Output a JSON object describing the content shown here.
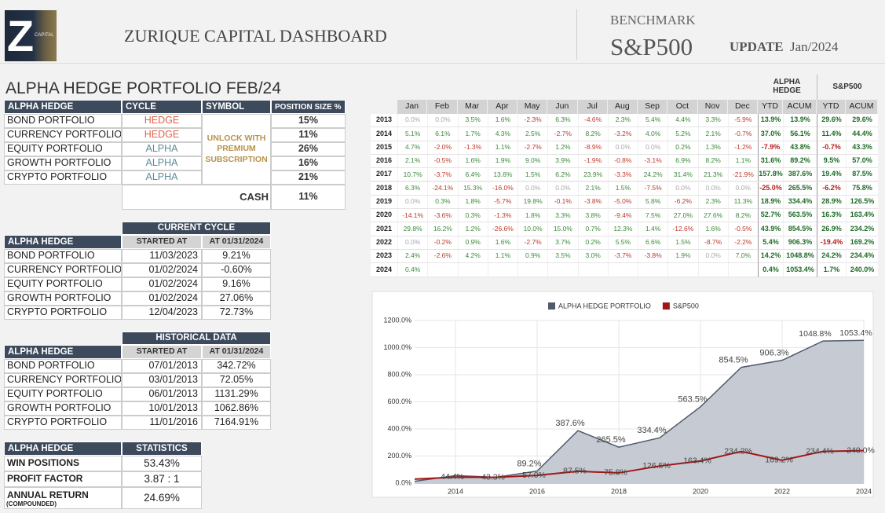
{
  "header": {
    "logo": "Z",
    "logo_sub": "CAPITAL",
    "title": "ZURIQUE CAPITAL DASHBOARD",
    "benchmark_label": "BENCHMARK",
    "benchmark": "S&P500",
    "update_label": "UPDATE",
    "update_value": "Jan/2024"
  },
  "portfolio": {
    "title": "ALPHA HEDGE PORTFOLIO FEB/24",
    "columns": [
      "ALPHA HEDGE",
      "CYCLE",
      "SYMBOL",
      "POSITION SIZE %"
    ],
    "rows": [
      [
        "BOND PORTFOLIO",
        "HEDGE",
        "15%"
      ],
      [
        "CURRENCY PORTFOLIO",
        "HEDGE",
        "11%"
      ],
      [
        "EQUITY PORTFOLIO",
        "ALPHA",
        "26%"
      ],
      [
        "GROWTH PORTFOLIO",
        "ALPHA",
        "16%"
      ],
      [
        "CRYPTO PORTFOLIO",
        "ALPHA",
        "21%"
      ]
    ],
    "symbol_note": "UNLOCK WITH PREMIUM SUBSCRIPTION",
    "cash_label": "CASH",
    "cash_value": "11%"
  },
  "current_cycle": {
    "title": "CURRENT CYCLE",
    "columns": [
      "ALPHA HEDGE",
      "STARTED AT",
      "AT 01/31/2024"
    ],
    "rows": [
      [
        "BOND PORTFOLIO",
        "11/03/2023",
        "9.21%"
      ],
      [
        "CURRENCY PORTFOLIO",
        "01/02/2024",
        "-0.60%"
      ],
      [
        "EQUITY PORTFOLIO",
        "01/02/2024",
        "9.16%"
      ],
      [
        "GROWTH PORTFOLIO",
        "01/02/2024",
        "27.06%"
      ],
      [
        "CRYPTO PORTFOLIO",
        "12/04/2023",
        "72.73%"
      ]
    ]
  },
  "historical": {
    "title": "HISTORICAL DATA",
    "columns": [
      "ALPHA HEDGE",
      "STARTED AT",
      "AT 01/31/2024"
    ],
    "rows": [
      [
        "BOND PORTFOLIO",
        "07/01/2013",
        "342.72%"
      ],
      [
        "CURRENCY PORTFOLIO",
        "03/01/2013",
        "72.05%"
      ],
      [
        "EQUITY PORTFOLIO",
        "06/01/2013",
        "1131.29%"
      ],
      [
        "GROWTH PORTFOLIO",
        "10/01/2013",
        "1062.86%"
      ],
      [
        "CRYPTO PORTFOLIO",
        "11/01/2016",
        "7164.91%"
      ]
    ]
  },
  "statistics": {
    "columns": [
      "ALPHA HEDGE",
      "STATISTICS"
    ],
    "rows": [
      [
        "WIN POSITIONS",
        "53.43%"
      ],
      [
        "PROFIT FACTOR",
        "3.87 : 1"
      ],
      [
        "ANNUAL RETURN",
        "24.69%"
      ]
    ],
    "note": "(COMPOUNDED)"
  },
  "monthly": {
    "groups": [
      "ALPHA HEDGE",
      "S&P500"
    ],
    "columns": [
      "Jan",
      "Feb",
      "Mar",
      "Apr",
      "May",
      "Jun",
      "Jul",
      "Aug",
      "Sep",
      "Oct",
      "Nov",
      "Dec",
      "YTD",
      "ACUM",
      "YTD",
      "ACUM"
    ],
    "rows": [
      [
        2013,
        "0.0%",
        "0.0%",
        "3.5%",
        "1.6%",
        "-2.3%",
        "6.3%",
        "-4.6%",
        "2.3%",
        "5.4%",
        "4.4%",
        "3.3%",
        "-5.9%",
        "13.9%",
        "13.9%",
        "29.6%",
        "29.6%"
      ],
      [
        2014,
        "5.1%",
        "6.1%",
        "1.7%",
        "4.3%",
        "2.5%",
        "-2.7%",
        "8.2%",
        "-3.2%",
        "4.0%",
        "5.2%",
        "2.1%",
        "-0.7%",
        "37.0%",
        "56.1%",
        "11.4%",
        "44.4%"
      ],
      [
        2015,
        "4.7%",
        "-2.0%",
        "-1.3%",
        "1.1%",
        "-2.7%",
        "1.2%",
        "-8.9%",
        "0.0%",
        "0.0%",
        "0.2%",
        "1.3%",
        "-1.2%",
        "-7.9%",
        "43.8%",
        "-0.7%",
        "43.3%"
      ],
      [
        2016,
        "2.1%",
        "-0.5%",
        "1.6%",
        "1.9%",
        "9.0%",
        "3.9%",
        "-1.9%",
        "-0.8%",
        "-3.1%",
        "6.9%",
        "8.2%",
        "1.1%",
        "31.6%",
        "89.2%",
        "9.5%",
        "57.0%"
      ],
      [
        2017,
        "10.7%",
        "-3.7%",
        "6.4%",
        "13.6%",
        "1.5%",
        "6.2%",
        "23.9%",
        "-3.3%",
        "24.2%",
        "31.4%",
        "21.3%",
        "-21.9%",
        "157.8%",
        "387.6%",
        "19.4%",
        "87.5%"
      ],
      [
        2018,
        "6.3%",
        "-24.1%",
        "15.3%",
        "-16.0%",
        "0.0%",
        "0.0%",
        "2.1%",
        "1.5%",
        "-7.5%",
        "0.0%",
        "0.0%",
        "0.0%",
        "-25.0%",
        "265.5%",
        "-6.2%",
        "75.8%"
      ],
      [
        2019,
        "0.0%",
        "0.3%",
        "1.8%",
        "-5.7%",
        "19.8%",
        "-0.1%",
        "-3.8%",
        "-5.0%",
        "5.8%",
        "-6.2%",
        "2.3%",
        "11.3%",
        "18.9%",
        "334.4%",
        "28.9%",
        "126.5%"
      ],
      [
        2020,
        "-14.1%",
        "-3.6%",
        "0.3%",
        "-1.3%",
        "1.8%",
        "3.3%",
        "3.8%",
        "-9.4%",
        "7.5%",
        "27.0%",
        "27.6%",
        "8.2%",
        "52.7%",
        "563.5%",
        "16.3%",
        "163.4%"
      ],
      [
        2021,
        "29.8%",
        "16.2%",
        "1.2%",
        "-26.6%",
        "10.0%",
        "15.0%",
        "0.7%",
        "12.3%",
        "1.4%",
        "-12.6%",
        "1.6%",
        "-0.5%",
        "43.9%",
        "854.5%",
        "26.9%",
        "234.2%"
      ],
      [
        2022,
        "0.0%",
        "-0.2%",
        "0.9%",
        "1.6%",
        "-2.7%",
        "3.7%",
        "0.2%",
        "5.5%",
        "6.6%",
        "1.5%",
        "-8.7%",
        "-2.2%",
        "5.4%",
        "906.3%",
        "-19.4%",
        "169.2%"
      ],
      [
        2023,
        "2.4%",
        "-2.6%",
        "4.2%",
        "1.1%",
        "0.9%",
        "3.5%",
        "3.0%",
        "-3.7%",
        "-3.8%",
        "1.9%",
        "0.0%",
        "7.0%",
        "14.2%",
        "1048.8%",
        "24.2%",
        "234.4%"
      ],
      [
        2024,
        "0.4%",
        null,
        null,
        null,
        null,
        null,
        null,
        null,
        null,
        null,
        null,
        null,
        "0.4%",
        "1053.4%",
        "1.7%",
        "240.0%"
      ]
    ]
  },
  "chart_data": {
    "type": "area",
    "x": [
      2013,
      2014,
      2015,
      2016,
      2017,
      2018,
      2019,
      2020,
      2021,
      2022,
      2023,
      2024
    ],
    "series": [
      {
        "name": "ALPHA HEDGE PORTFOLIO",
        "color": "#4f5b6b",
        "fill": "#c6cbd3",
        "values": [
          13.9,
          56.1,
          43.8,
          89.2,
          387.6,
          265.5,
          334.4,
          563.5,
          854.5,
          906.3,
          1048.8,
          1053.4
        ],
        "value_labels": [
          null,
          null,
          null,
          "89.2%",
          "387.6%",
          "265.5%",
          "334.4%",
          "563.5%",
          "854.5%",
          "906.3%",
          "1048.8%",
          "1053.4%"
        ]
      },
      {
        "name": "S&P500",
        "color": "#a31515",
        "values": [
          29.6,
          44.4,
          43.3,
          57.0,
          87.5,
          75.8,
          126.5,
          163.4,
          234.2,
          169.2,
          234.4,
          240.0
        ],
        "value_labels": [
          null,
          "44.4%",
          "43.3%",
          "57.0%",
          "87.5%",
          "75.8%",
          "126.5%",
          "163.4%",
          "234.2%",
          "169.2%",
          "234.4%",
          "240.0%"
        ]
      }
    ],
    "xlim": [
      2013,
      2024
    ],
    "xticks": [
      2014,
      2016,
      2018,
      2020,
      2022,
      2024
    ],
    "ylim": [
      0,
      1200
    ],
    "yticks": [
      {
        "value": 0,
        "label": "0.0%"
      },
      {
        "value": 200,
        "label": "200.0%"
      },
      {
        "value": 400,
        "label": "400.0%"
      },
      {
        "value": 600,
        "label": "600.0%"
      },
      {
        "value": 800,
        "label": "800.0%"
      },
      {
        "value": 1000,
        "label": "1000.0%"
      },
      {
        "value": 1200,
        "label": "1200.0%"
      }
    ],
    "grid": true,
    "legend": "top"
  }
}
